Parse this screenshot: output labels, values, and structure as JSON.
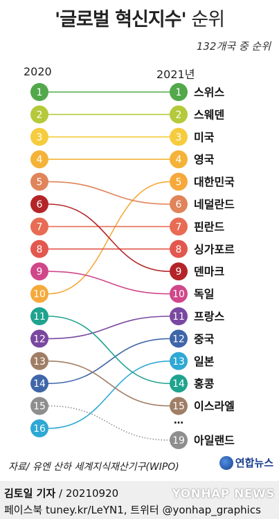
{
  "title": "'글로벌 혁신지수'",
  "title_suffix": " 순위",
  "subtitle": "132개국 중 순위",
  "columns": {
    "left": "2020",
    "right": "2021년"
  },
  "ellipsis": "…",
  "source": "자료/ 유엔 산하 세계지식재산기구(WIPO)",
  "brand": "연합뉴스",
  "credit": {
    "author": "김토일 기자",
    "date": " / 20210920"
  },
  "social": "페이스북 tuney.kr/LeYN1, 트위터 @yonhap_graphics",
  "watermark": "YONHAP NEWS",
  "chart_data": {
    "type": "line",
    "x": [
      "2020",
      "2021년"
    ],
    "series": [
      {
        "name": "스위스",
        "values": [
          1,
          1
        ],
        "color": "#52a84a"
      },
      {
        "name": "스웨덴",
        "values": [
          2,
          2
        ],
        "color": "#b5c93a"
      },
      {
        "name": "미국",
        "values": [
          3,
          3
        ],
        "color": "#f6cc3f"
      },
      {
        "name": "영국",
        "values": [
          4,
          4
        ],
        "color": "#f4b338"
      },
      {
        "name": "대한민국",
        "values": [
          10,
          5
        ],
        "color": "#f6a93b"
      },
      {
        "name": "네덜란드",
        "values": [
          5,
          6
        ],
        "color": "#e0845a"
      },
      {
        "name": "핀란드",
        "values": [
          7,
          7
        ],
        "color": "#e86c54"
      },
      {
        "name": "싱가포르",
        "values": [
          8,
          8
        ],
        "color": "#e2584e"
      },
      {
        "name": "덴마크",
        "values": [
          6,
          9
        ],
        "color": "#b32528"
      },
      {
        "name": "독일",
        "values": [
          9,
          10
        ],
        "color": "#d0478a"
      },
      {
        "name": "프랑스",
        "values": [
          12,
          11
        ],
        "color": "#7a48a0"
      },
      {
        "name": "중국",
        "values": [
          14,
          12
        ],
        "color": "#3f66a9"
      },
      {
        "name": "일본",
        "values": [
          16,
          13
        ],
        "color": "#2ea8d4"
      },
      {
        "name": "홍콩",
        "values": [
          11,
          14
        ],
        "color": "#1fa38f"
      },
      {
        "name": "이스라엘",
        "values": [
          13,
          15
        ],
        "color": "#a07e66"
      },
      {
        "name": "아일랜드",
        "values": [
          15,
          19
        ],
        "color": "#8e8e8e",
        "dashed": true
      }
    ]
  }
}
